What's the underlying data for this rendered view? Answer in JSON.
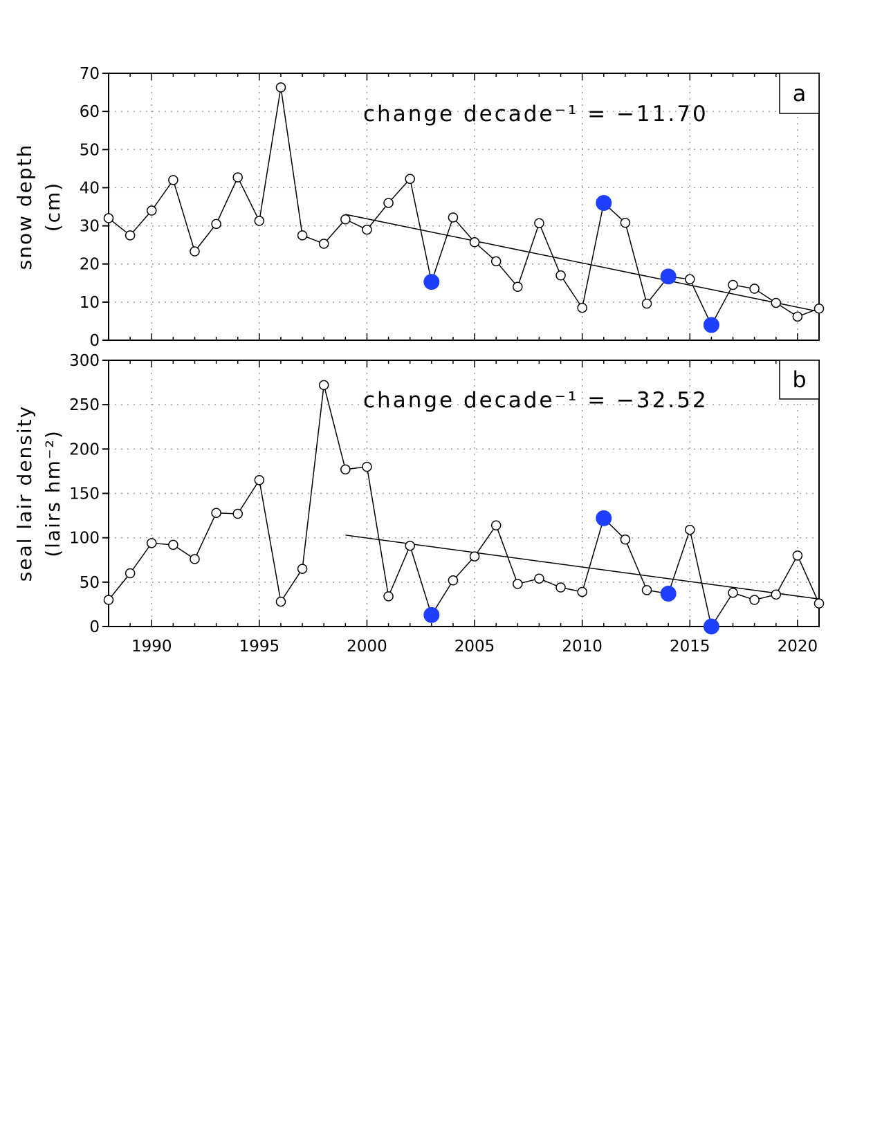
{
  "colors": {
    "highlight": "#1f3fff",
    "line": "#000000",
    "grid": "#9a9a9a",
    "marker_fill": "#ffffff"
  },
  "chart_data": [
    {
      "type": "line",
      "panel_label": "a",
      "ylabel_lines": [
        "snow depth",
        "(cm)"
      ],
      "annotation": "change decade⁻¹ = −11.70",
      "xlim": [
        1988,
        2021
      ],
      "ylim": [
        0,
        70
      ],
      "grid": true,
      "yticks": [
        "0",
        "10",
        "20",
        "30",
        "40",
        "50",
        "60",
        "70"
      ],
      "xticks": [
        1990,
        1995,
        2000,
        2005,
        2010,
        2015,
        2020
      ],
      "x": [
        1988,
        1989,
        1990,
        1991,
        1992,
        1993,
        1994,
        1995,
        1996,
        1997,
        1998,
        1999,
        2000,
        2001,
        2002,
        2003,
        2004,
        2005,
        2006,
        2007,
        2008,
        2009,
        2010,
        2011,
        2012,
        2013,
        2014,
        2015,
        2016,
        2017,
        2018,
        2019,
        2020,
        2021
      ],
      "values": [
        32,
        27.5,
        34,
        42,
        23.3,
        30.5,
        42.7,
        31.3,
        66.3,
        27.5,
        25.3,
        31.7,
        29,
        36,
        42.3,
        15.3,
        32.2,
        25.7,
        20.7,
        14,
        30.7,
        17,
        8.5,
        36,
        30.8,
        9.6,
        16.7,
        16,
        4,
        14.5,
        13.5,
        9.8,
        6.2,
        8.3
      ],
      "highlight_years": [
        2003,
        2011,
        2014,
        2016
      ],
      "trend": {
        "x": [
          1999,
          2021
        ],
        "y": [
          33,
          7.5
        ]
      }
    },
    {
      "type": "line",
      "panel_label": "b",
      "ylabel_lines": [
        "seal lair density",
        "(lairs hm⁻²)"
      ],
      "annotation": "change decade⁻¹ = −32.52",
      "xlim": [
        1988,
        2021
      ],
      "ylim": [
        0,
        300
      ],
      "grid": true,
      "yticks": [
        "0",
        "50",
        "100",
        "150",
        "200",
        "250",
        "300"
      ],
      "xticks": [
        1990,
        1995,
        2000,
        2005,
        2010,
        2015,
        2020
      ],
      "xtick_labels": [
        "1990",
        "1995",
        "2000",
        "2005",
        "2010",
        "2015",
        "2020"
      ],
      "x": [
        1988,
        1989,
        1990,
        1991,
        1992,
        1993,
        1994,
        1995,
        1996,
        1997,
        1998,
        1999,
        2000,
        2001,
        2002,
        2003,
        2004,
        2005,
        2006,
        2007,
        2008,
        2009,
        2010,
        2011,
        2012,
        2013,
        2014,
        2015,
        2016,
        2017,
        2018,
        2019,
        2020,
        2021
      ],
      "values": [
        30,
        60,
        94,
        92,
        76,
        128,
        127,
        165,
        28,
        65,
        272,
        177,
        180,
        34,
        91,
        13,
        52,
        79,
        114,
        48,
        54,
        44,
        39,
        122,
        98,
        41,
        37,
        109,
        0,
        38,
        30,
        36,
        80,
        26
      ],
      "highlight_years": [
        2003,
        2011,
        2014,
        2016
      ],
      "trend": {
        "x": [
          1999,
          2021
        ],
        "y": [
          103,
          31
        ]
      }
    }
  ]
}
